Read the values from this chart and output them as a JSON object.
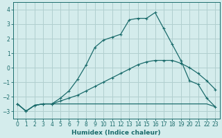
{
  "xlabel": "Humidex (Indice chaleur)",
  "bg_color": "#d4ecec",
  "grid_color": "#b0cfcf",
  "line_color": "#1a6b6b",
  "xlim": [
    -0.5,
    23.5
  ],
  "ylim": [
    -3.5,
    4.5
  ],
  "yticks": [
    -3,
    -2,
    -1,
    0,
    1,
    2,
    3,
    4
  ],
  "xticks": [
    0,
    1,
    2,
    3,
    4,
    5,
    6,
    7,
    8,
    9,
    10,
    11,
    12,
    13,
    14,
    15,
    16,
    17,
    18,
    19,
    20,
    21,
    22,
    23
  ],
  "series1_x": [
    0,
    1,
    2,
    3,
    4,
    5,
    6,
    7,
    8,
    9,
    10,
    11,
    12,
    13,
    14,
    15,
    16,
    17,
    18,
    19,
    20,
    21,
    22,
    23
  ],
  "series1_y": [
    -2.5,
    -3.0,
    -2.6,
    -2.5,
    -2.5,
    -2.1,
    -1.6,
    -0.8,
    0.2,
    1.4,
    1.9,
    2.1,
    2.3,
    3.3,
    3.4,
    3.4,
    3.8,
    2.7,
    1.6,
    0.5,
    -0.9,
    -1.15,
    -2.1,
    -2.7
  ],
  "series2_x": [
    0,
    1,
    2,
    3,
    4,
    5,
    6,
    7,
    8,
    9,
    10,
    11,
    12,
    13,
    14,
    15,
    16,
    17,
    18,
    19,
    20,
    21,
    22,
    23
  ],
  "series2_y": [
    -2.5,
    -3.0,
    -2.6,
    -2.5,
    -2.5,
    -2.3,
    -2.1,
    -1.9,
    -1.6,
    -1.3,
    -1.0,
    -0.7,
    -0.4,
    -0.1,
    0.2,
    0.4,
    0.5,
    0.5,
    0.5,
    0.3,
    0.0,
    -0.4,
    -0.9,
    -1.5
  ],
  "series3_x": [
    0,
    1,
    2,
    3,
    4,
    5,
    6,
    7,
    8,
    9,
    10,
    11,
    12,
    13,
    14,
    15,
    16,
    17,
    18,
    19,
    20,
    21,
    22,
    23
  ],
  "series3_y": [
    -2.5,
    -3.0,
    -2.6,
    -2.5,
    -2.5,
    -2.5,
    -2.5,
    -2.5,
    -2.5,
    -2.5,
    -2.5,
    -2.5,
    -2.5,
    -2.5,
    -2.5,
    -2.5,
    -2.5,
    -2.5,
    -2.5,
    -2.5,
    -2.5,
    -2.5,
    -2.5,
    -2.7
  ]
}
